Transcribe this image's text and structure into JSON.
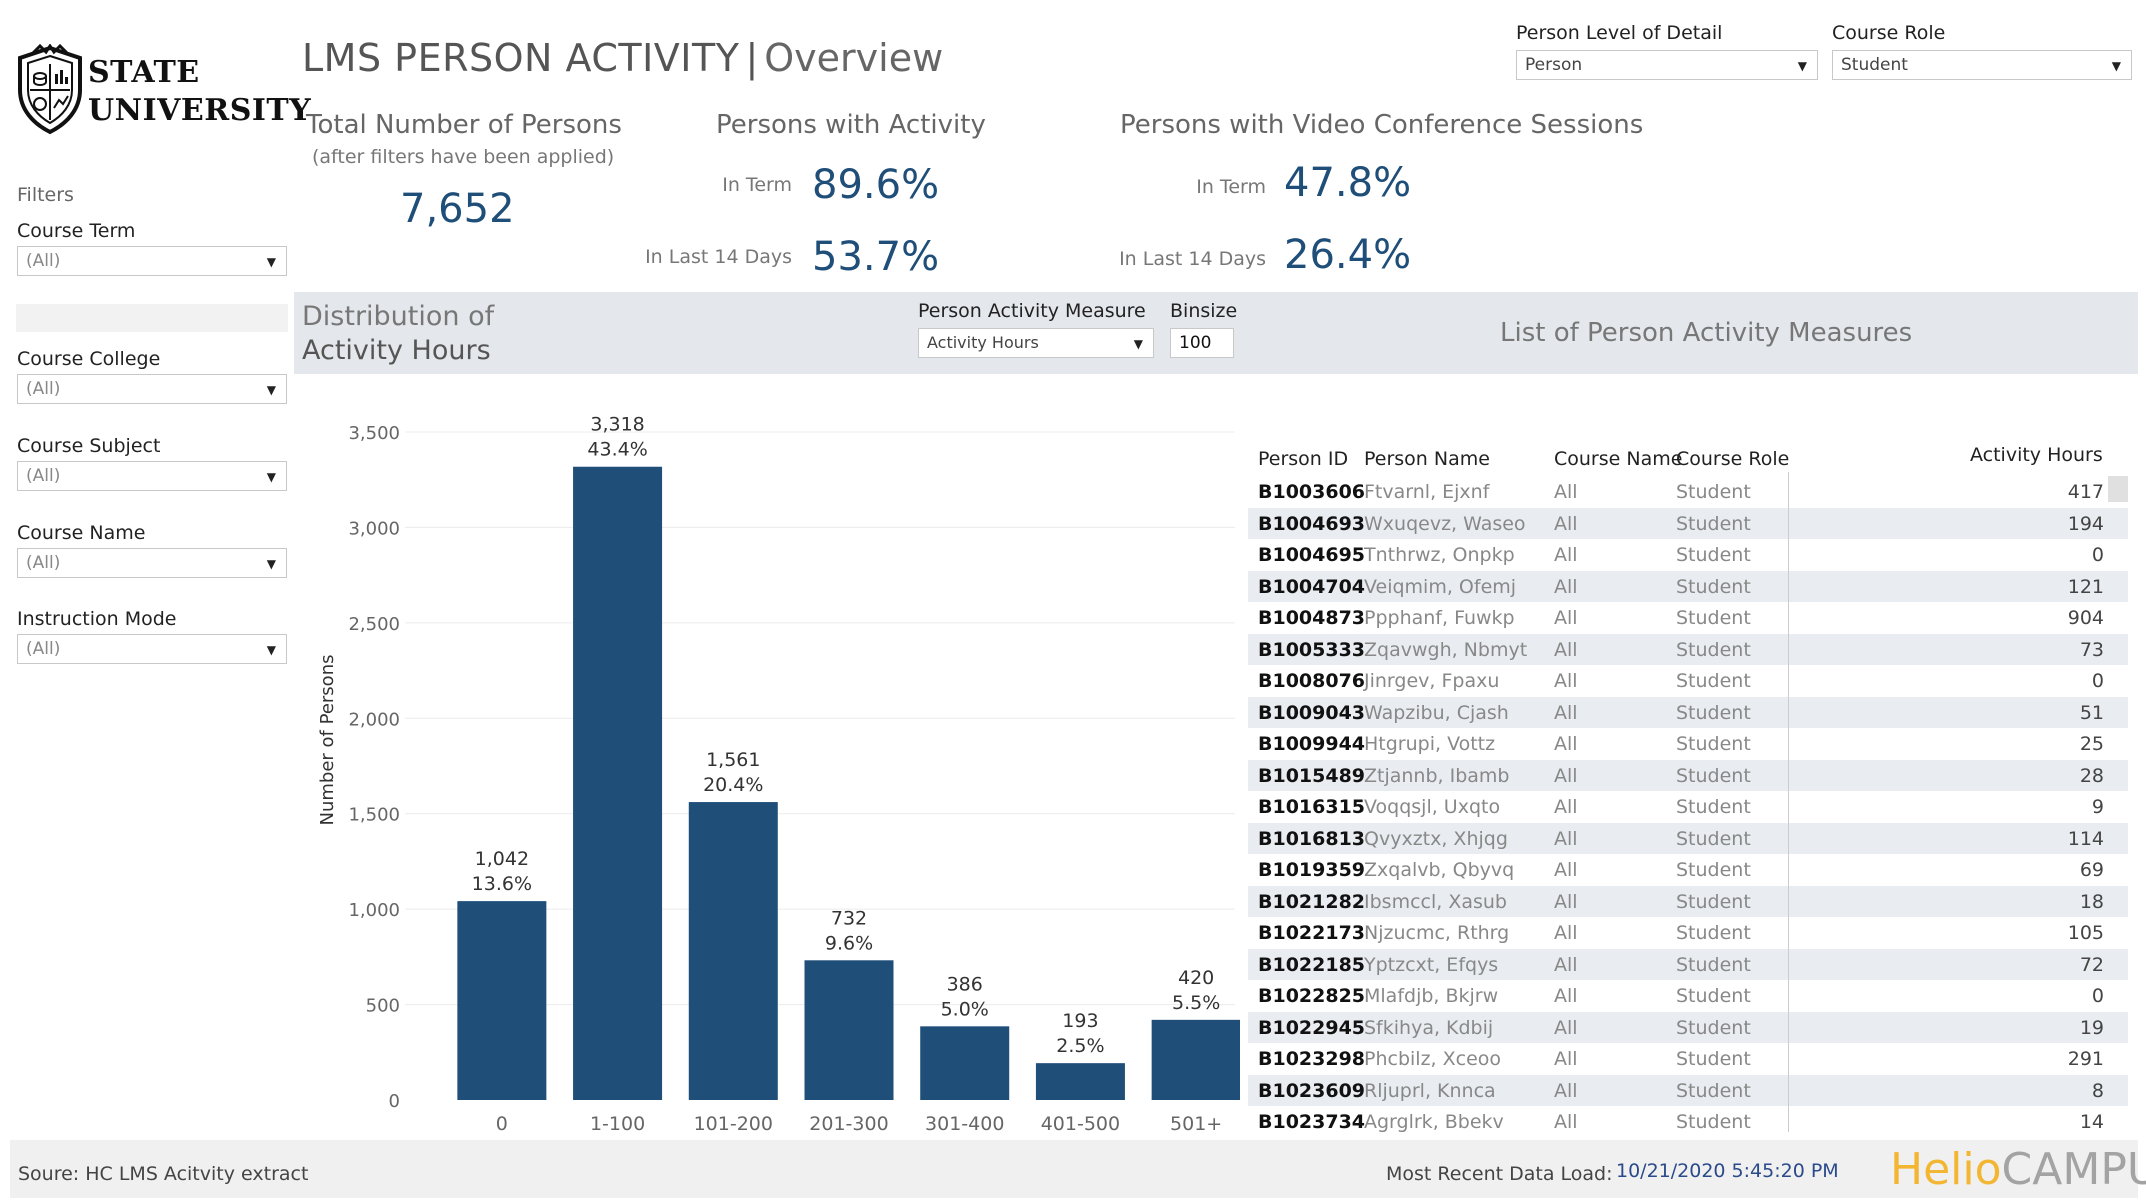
{
  "logo": {
    "line1": "STATE",
    "line2": "UNIVERSITY"
  },
  "title": {
    "main": "LMS PERSON ACTIVITY",
    "separator": "|",
    "sub": "Overview"
  },
  "top_controls": {
    "level": {
      "label": "Person Level of Detail",
      "value": "Person"
    },
    "role": {
      "label": "Course Role",
      "value": "Student"
    }
  },
  "kpis": {
    "total": {
      "heading": "Total Number of Persons",
      "note": "(after filters have been applied)",
      "value": "7,652"
    },
    "activity": {
      "heading": "Persons with  Activity",
      "in_term_label": "In Term",
      "in_term_value": "89.6%",
      "last14_label": "In Last 14 Days",
      "last14_value": "53.7%"
    },
    "video": {
      "heading": "Persons with Video Conference Sessions",
      "in_term_label": "In Term",
      "in_term_value": "47.8%",
      "last14_label": "In Last 14 Days",
      "last14_value": "26.4%"
    }
  },
  "filters": {
    "title": "Filters",
    "items": [
      {
        "label": "Course Term",
        "value": "(All)"
      },
      {
        "label": "Course College",
        "value": "(All)"
      },
      {
        "label": "Course Subject",
        "value": "(All)"
      },
      {
        "label": "Course Name",
        "value": "(All)"
      },
      {
        "label": "Instruction Mode",
        "value": "(All)"
      }
    ]
  },
  "band": {
    "dist_line1": "Distribution of",
    "dist_line2": "Activity Hours",
    "measure_label": "Person Activity Measure",
    "measure_value": "Activity Hours",
    "binsize_label": "Binsize",
    "binsize_value": "100",
    "list_title": "List of Person Activity Measures"
  },
  "chart_data": {
    "type": "bar",
    "ylabel": "Number of Persons",
    "xlabel": "",
    "ylim": [
      0,
      3500
    ],
    "yticks": [
      "0",
      "500",
      "1,000",
      "1,500",
      "2,000",
      "2,500",
      "3,000",
      "3,500"
    ],
    "categories": [
      "0",
      "1-100",
      "101-200",
      "201-300",
      "301-400",
      "401-500",
      "501+"
    ],
    "values": [
      1042,
      3318,
      1561,
      732,
      386,
      193,
      420
    ],
    "value_labels": [
      "1,042",
      "3,318",
      "1,561",
      "732",
      "386",
      "193",
      "420"
    ],
    "pct_labels": [
      "13.6%",
      "43.4%",
      "20.4%",
      "9.6%",
      "5.0%",
      "2.5%",
      "5.5%"
    ],
    "bar_color": "#1f4e79",
    "grid": true
  },
  "table": {
    "headers": {
      "id": "Person ID",
      "name": "Person Name",
      "course": "Course Name",
      "role": "Course Role",
      "hours": "Activity Hours"
    },
    "rows": [
      {
        "id": "B1003606",
        "name": "Ftvarnl, Ejxnf",
        "course": "All",
        "role": "Student",
        "hours": "417"
      },
      {
        "id": "B1004693",
        "name": "Wxuqevz, Waseo",
        "course": "All",
        "role": "Student",
        "hours": "194"
      },
      {
        "id": "B1004695",
        "name": "Tnthrwz, Onpkp",
        "course": "All",
        "role": "Student",
        "hours": "0"
      },
      {
        "id": "B1004704",
        "name": "Veiqmim, Ofemj",
        "course": "All",
        "role": "Student",
        "hours": "121"
      },
      {
        "id": "B1004873",
        "name": "Ppphanf, Fuwkp",
        "course": "All",
        "role": "Student",
        "hours": "904"
      },
      {
        "id": "B1005333",
        "name": "Zqavwgh, Nbmyt",
        "course": "All",
        "role": "Student",
        "hours": "73"
      },
      {
        "id": "B1008076",
        "name": "Jinrgev, Fpaxu",
        "course": "All",
        "role": "Student",
        "hours": "0"
      },
      {
        "id": "B1009043",
        "name": "Wapzibu, Cjash",
        "course": "All",
        "role": "Student",
        "hours": "51"
      },
      {
        "id": "B1009944",
        "name": "Htgrupi, Vottz",
        "course": "All",
        "role": "Student",
        "hours": "25"
      },
      {
        "id": "B1015489",
        "name": "Ztjannb, Ibamb",
        "course": "All",
        "role": "Student",
        "hours": "28"
      },
      {
        "id": "B1016315",
        "name": "Voqqsjl, Uxqto",
        "course": "All",
        "role": "Student",
        "hours": "9"
      },
      {
        "id": "B1016813",
        "name": "Qvyxztx, Xhjqg",
        "course": "All",
        "role": "Student",
        "hours": "114"
      },
      {
        "id": "B1019359",
        "name": "Zxqalvb, Qbyvq",
        "course": "All",
        "role": "Student",
        "hours": "69"
      },
      {
        "id": "B1021282",
        "name": "Ibsmccl, Xasub",
        "course": "All",
        "role": "Student",
        "hours": "18"
      },
      {
        "id": "B1022173",
        "name": "Njzucmc, Rthrg",
        "course": "All",
        "role": "Student",
        "hours": "105"
      },
      {
        "id": "B1022185",
        "name": "Yptzcxt, Efqys",
        "course": "All",
        "role": "Student",
        "hours": "72"
      },
      {
        "id": "B1022825",
        "name": "Mlafdjb, Bkjrw",
        "course": "All",
        "role": "Student",
        "hours": "0"
      },
      {
        "id": "B1022945",
        "name": "Sfkihya, Kdbij",
        "course": "All",
        "role": "Student",
        "hours": "19"
      },
      {
        "id": "B1023298",
        "name": "Phcbilz, Xceoo",
        "course": "All",
        "role": "Student",
        "hours": "291"
      },
      {
        "id": "B1023609",
        "name": "Rljuprl, Knnca",
        "course": "All",
        "role": "Student",
        "hours": "8"
      },
      {
        "id": "B1023734",
        "name": "Agrglrk, Bbekv",
        "course": "All",
        "role": "Student",
        "hours": "14"
      }
    ]
  },
  "footer": {
    "source": "Soure: HC LMS Acitvity extract",
    "recent_label": "Most Recent Data Load:",
    "recent_value": "10/21/2020 5:45:20 PM",
    "brand_part1": "Helio",
    "brand_part2": "CAMPUS"
  },
  "colors": {
    "accent": "#1f4e79",
    "band": "#e4e8ec",
    "brand_yellow": "#f2b632",
    "brand_grey": "#a3a3a3"
  }
}
